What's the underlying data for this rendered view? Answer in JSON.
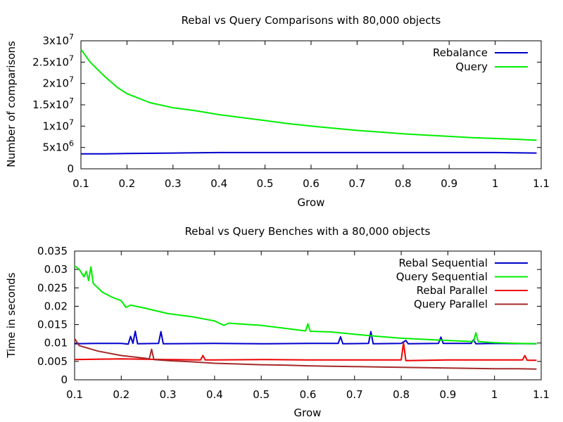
{
  "chart_data": [
    {
      "type": "line",
      "title": "Rebal vs Query Comparisons with 80,000 objects",
      "xlabel": "Grow",
      "ylabel": "Number of comparisons",
      "xlim": [
        0.1,
        1.1
      ],
      "ylim": [
        0,
        30000000
      ],
      "x_ticks": [
        "0.1",
        "0.2",
        "0.3",
        "0.4",
        "0.5",
        "0.6",
        "0.7",
        "0.8",
        "0.9",
        "1",
        "1.1"
      ],
      "y_ticks": [
        {
          "value": 0,
          "base": "0",
          "exp": ""
        },
        {
          "value": 5000000,
          "base": "5x10",
          "exp": "6"
        },
        {
          "value": 10000000,
          "base": "1x10",
          "exp": "7"
        },
        {
          "value": 15000000,
          "base": "1.5x10",
          "exp": "7"
        },
        {
          "value": 20000000,
          "base": "2x10",
          "exp": "7"
        },
        {
          "value": 25000000,
          "base": "2.5x10",
          "exp": "7"
        },
        {
          "value": 30000000,
          "base": "3x10",
          "exp": "7"
        }
      ],
      "legend_position": "top-right",
      "grid": false,
      "series": [
        {
          "name": "Rebalance",
          "color": "#0000cc",
          "points": [
            [
              0.1,
              3500000
            ],
            [
              0.15,
              3500000
            ],
            [
              0.2,
              3600000
            ],
            [
              0.3,
              3700000
            ],
            [
              0.4,
              3800000
            ],
            [
              0.5,
              3800000
            ],
            [
              0.6,
              3800000
            ],
            [
              0.7,
              3800000
            ],
            [
              0.8,
              3800000
            ],
            [
              0.9,
              3800000
            ],
            [
              1.0,
              3800000
            ],
            [
              1.09,
              3700000
            ]
          ]
        },
        {
          "name": "Query",
          "color": "#00ee00",
          "points": [
            [
              0.1,
              28000000
            ],
            [
              0.12,
              25000000
            ],
            [
              0.15,
              21800000
            ],
            [
              0.18,
              19000000
            ],
            [
              0.2,
              17600000
            ],
            [
              0.25,
              15500000
            ],
            [
              0.3,
              14300000
            ],
            [
              0.35,
              13600000
            ],
            [
              0.4,
              12700000
            ],
            [
              0.45,
              12000000
            ],
            [
              0.5,
              11300000
            ],
            [
              0.55,
              10600000
            ],
            [
              0.6,
              10000000
            ],
            [
              0.65,
              9500000
            ],
            [
              0.7,
              9000000
            ],
            [
              0.75,
              8600000
            ],
            [
              0.8,
              8200000
            ],
            [
              0.85,
              7900000
            ],
            [
              0.9,
              7600000
            ],
            [
              0.95,
              7300000
            ],
            [
              1.0,
              7100000
            ],
            [
              1.05,
              6900000
            ],
            [
              1.09,
              6700000
            ]
          ]
        }
      ]
    },
    {
      "type": "line",
      "title": "Rebal vs Query Benches with a 80,000 objects",
      "xlabel": "Grow",
      "ylabel": "Time in seconds",
      "xlim": [
        0.1,
        1.1
      ],
      "ylim": [
        0,
        0.035
      ],
      "x_ticks": [
        "0.1",
        "0.2",
        "0.3",
        "0.4",
        "0.5",
        "0.6",
        "0.7",
        "0.8",
        "0.9",
        "1",
        "1.1"
      ],
      "y_ticks": [
        {
          "value": 0,
          "label": "0"
        },
        {
          "value": 0.005,
          "label": "0.005"
        },
        {
          "value": 0.01,
          "label": "0.01"
        },
        {
          "value": 0.015,
          "label": "0.015"
        },
        {
          "value": 0.02,
          "label": "0.02"
        },
        {
          "value": 0.025,
          "label": "0.025"
        },
        {
          "value": 0.03,
          "label": "0.03"
        },
        {
          "value": 0.035,
          "label": "0.035"
        }
      ],
      "legend_position": "top-right",
      "grid": false,
      "series": [
        {
          "name": "Rebal Sequential",
          "color": "#0000cc",
          "points": [
            [
              0.1,
              0.0098
            ],
            [
              0.15,
              0.0099
            ],
            [
              0.2,
              0.0099
            ],
            [
              0.215,
              0.0097
            ],
            [
              0.22,
              0.0118
            ],
            [
              0.225,
              0.0099
            ],
            [
              0.23,
              0.0132
            ],
            [
              0.235,
              0.0098
            ],
            [
              0.28,
              0.0099
            ],
            [
              0.285,
              0.0131
            ],
            [
              0.29,
              0.0098
            ],
            [
              0.4,
              0.0099
            ],
            [
              0.5,
              0.0098
            ],
            [
              0.6,
              0.0099
            ],
            [
              0.665,
              0.0099
            ],
            [
              0.67,
              0.0117
            ],
            [
              0.675,
              0.0098
            ],
            [
              0.73,
              0.0099
            ],
            [
              0.735,
              0.0131
            ],
            [
              0.74,
              0.0098
            ],
            [
              0.8,
              0.0099
            ],
            [
              0.81,
              0.0107
            ],
            [
              0.815,
              0.0098
            ],
            [
              0.88,
              0.0099
            ],
            [
              0.885,
              0.0116
            ],
            [
              0.89,
              0.0099
            ],
            [
              0.95,
              0.0099
            ],
            [
              0.955,
              0.0109
            ],
            [
              0.96,
              0.0098
            ],
            [
              1.0,
              0.0099
            ],
            [
              1.09,
              0.0098
            ]
          ]
        },
        {
          "name": "Query Sequential",
          "color": "#00ee00",
          "points": [
            [
              0.1,
              0.031
            ],
            [
              0.11,
              0.03
            ],
            [
              0.12,
              0.028
            ],
            [
              0.125,
              0.0295
            ],
            [
              0.13,
              0.027
            ],
            [
              0.135,
              0.0307
            ],
            [
              0.14,
              0.0262
            ],
            [
              0.16,
              0.0238
            ],
            [
              0.18,
              0.0225
            ],
            [
              0.2,
              0.0215
            ],
            [
              0.21,
              0.0197
            ],
            [
              0.22,
              0.0203
            ],
            [
              0.25,
              0.0195
            ],
            [
              0.3,
              0.018
            ],
            [
              0.35,
              0.0172
            ],
            [
              0.4,
              0.016
            ],
            [
              0.42,
              0.0148
            ],
            [
              0.43,
              0.0154
            ],
            [
              0.5,
              0.0148
            ],
            [
              0.55,
              0.014
            ],
            [
              0.595,
              0.0133
            ],
            [
              0.6,
              0.0152
            ],
            [
              0.605,
              0.0132
            ],
            [
              0.65,
              0.013
            ],
            [
              0.7,
              0.0124
            ],
            [
              0.75,
              0.0118
            ],
            [
              0.8,
              0.0113
            ],
            [
              0.85,
              0.011
            ],
            [
              0.9,
              0.0107
            ],
            [
              0.955,
              0.0104
            ],
            [
              0.96,
              0.0128
            ],
            [
              0.965,
              0.0104
            ],
            [
              1.0,
              0.0101
            ],
            [
              1.05,
              0.0099
            ],
            [
              1.09,
              0.0098
            ]
          ]
        },
        {
          "name": "Rebal Parallel",
          "color": "#ee0000",
          "points": [
            [
              0.1,
              0.0055
            ],
            [
              0.2,
              0.0057
            ],
            [
              0.3,
              0.0055
            ],
            [
              0.37,
              0.0054
            ],
            [
              0.375,
              0.0066
            ],
            [
              0.38,
              0.0054
            ],
            [
              0.4,
              0.0054
            ],
            [
              0.5,
              0.0055
            ],
            [
              0.6,
              0.0054
            ],
            [
              0.7,
              0.0054
            ],
            [
              0.8,
              0.0054
            ],
            [
              0.805,
              0.0101
            ],
            [
              0.81,
              0.0052
            ],
            [
              0.9,
              0.0054
            ],
            [
              1.0,
              0.0054
            ],
            [
              1.06,
              0.0054
            ],
            [
              1.065,
              0.0066
            ],
            [
              1.07,
              0.0053
            ],
            [
              1.09,
              0.0053
            ]
          ]
        },
        {
          "name": "Query Parallel",
          "color": "#a52a2a",
          "points": [
            [
              0.1,
              0.0112
            ],
            [
              0.11,
              0.0093
            ],
            [
              0.15,
              0.0078
            ],
            [
              0.2,
              0.0066
            ],
            [
              0.25,
              0.0059
            ],
            [
              0.26,
              0.0057
            ],
            [
              0.265,
              0.0083
            ],
            [
              0.27,
              0.0055
            ],
            [
              0.3,
              0.0052
            ],
            [
              0.35,
              0.0049
            ],
            [
              0.4,
              0.0045
            ],
            [
              0.45,
              0.0043
            ],
            [
              0.5,
              0.0041
            ],
            [
              0.55,
              0.004
            ],
            [
              0.6,
              0.0038
            ],
            [
              0.65,
              0.0037
            ],
            [
              0.7,
              0.0036
            ],
            [
              0.75,
              0.0035
            ],
            [
              0.8,
              0.0034
            ],
            [
              0.85,
              0.0033
            ],
            [
              0.9,
              0.0032
            ],
            [
              0.95,
              0.0031
            ],
            [
              1.0,
              0.003
            ],
            [
              1.05,
              0.003
            ],
            [
              1.09,
              0.0029
            ]
          ]
        }
      ]
    }
  ]
}
